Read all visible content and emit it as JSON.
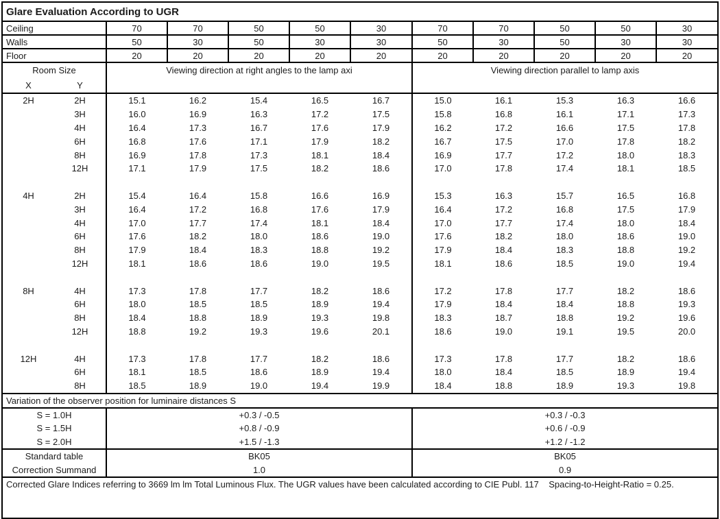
{
  "title": "Glare Evaluation According to UGR",
  "surface_rows": [
    {
      "label": "Ceiling",
      "values": [
        "70",
        "70",
        "50",
        "50",
        "30",
        "70",
        "70",
        "50",
        "50",
        "30"
      ]
    },
    {
      "label": "Walls",
      "values": [
        "50",
        "30",
        "50",
        "30",
        "30",
        "50",
        "30",
        "50",
        "30",
        "30"
      ]
    },
    {
      "label": "Floor",
      "values": [
        "20",
        "20",
        "20",
        "20",
        "20",
        "20",
        "20",
        "20",
        "20",
        "20"
      ]
    }
  ],
  "room_size": {
    "title": "Room Size",
    "x_label": "X",
    "y_label": "Y"
  },
  "viewing_left": "Viewing direction at right angles to the lamp axi",
  "viewing_right": "Viewing direction parallel to lamp axis",
  "blocks": [
    {
      "x": "2H",
      "rows": [
        {
          "y": "2H",
          "left": [
            "15.1",
            "16.2",
            "15.4",
            "16.5",
            "16.7"
          ],
          "right": [
            "15.0",
            "16.1",
            "15.3",
            "16.3",
            "16.6"
          ]
        },
        {
          "y": "3H",
          "left": [
            "16.0",
            "16.9",
            "16.3",
            "17.2",
            "17.5"
          ],
          "right": [
            "15.8",
            "16.8",
            "16.1",
            "17.1",
            "17.3"
          ]
        },
        {
          "y": "4H",
          "left": [
            "16.4",
            "17.3",
            "16.7",
            "17.6",
            "17.9"
          ],
          "right": [
            "16.2",
            "17.2",
            "16.6",
            "17.5",
            "17.8"
          ]
        },
        {
          "y": "6H",
          "left": [
            "16.8",
            "17.6",
            "17.1",
            "17.9",
            "18.2"
          ],
          "right": [
            "16.7",
            "17.5",
            "17.0",
            "17.8",
            "18.2"
          ]
        },
        {
          "y": "8H",
          "left": [
            "16.9",
            "17.8",
            "17.3",
            "18.1",
            "18.4"
          ],
          "right": [
            "16.9",
            "17.7",
            "17.2",
            "18.0",
            "18.3"
          ]
        },
        {
          "y": "12H",
          "left": [
            "17.1",
            "17.9",
            "17.5",
            "18.2",
            "18.6"
          ],
          "right": [
            "17.0",
            "17.8",
            "17.4",
            "18.1",
            "18.5"
          ]
        }
      ]
    },
    {
      "x": "4H",
      "rows": [
        {
          "y": "2H",
          "left": [
            "15.4",
            "16.4",
            "15.8",
            "16.6",
            "16.9"
          ],
          "right": [
            "15.3",
            "16.3",
            "15.7",
            "16.5",
            "16.8"
          ]
        },
        {
          "y": "3H",
          "left": [
            "16.4",
            "17.2",
            "16.8",
            "17.6",
            "17.9"
          ],
          "right": [
            "16.4",
            "17.2",
            "16.8",
            "17.5",
            "17.9"
          ]
        },
        {
          "y": "4H",
          "left": [
            "17.0",
            "17.7",
            "17.4",
            "18.1",
            "18.4"
          ],
          "right": [
            "17.0",
            "17.7",
            "17.4",
            "18.0",
            "18.4"
          ]
        },
        {
          "y": "6H",
          "left": [
            "17.6",
            "18.2",
            "18.0",
            "18.6",
            "19.0"
          ],
          "right": [
            "17.6",
            "18.2",
            "18.0",
            "18.6",
            "19.0"
          ]
        },
        {
          "y": "8H",
          "left": [
            "17.9",
            "18.4",
            "18.3",
            "18.8",
            "19.2"
          ],
          "right": [
            "17.9",
            "18.4",
            "18.3",
            "18.8",
            "19.2"
          ]
        },
        {
          "y": "12H",
          "left": [
            "18.1",
            "18.6",
            "18.6",
            "19.0",
            "19.5"
          ],
          "right": [
            "18.1",
            "18.6",
            "18.5",
            "19.0",
            "19.4"
          ]
        }
      ]
    },
    {
      "x": "8H",
      "rows": [
        {
          "y": "4H",
          "left": [
            "17.3",
            "17.8",
            "17.7",
            "18.2",
            "18.6"
          ],
          "right": [
            "17.2",
            "17.8",
            "17.7",
            "18.2",
            "18.6"
          ]
        },
        {
          "y": "6H",
          "left": [
            "18.0",
            "18.5",
            "18.5",
            "18.9",
            "19.4"
          ],
          "right": [
            "17.9",
            "18.4",
            "18.4",
            "18.8",
            "19.3"
          ]
        },
        {
          "y": "8H",
          "left": [
            "18.4",
            "18.8",
            "18.9",
            "19.3",
            "19.8"
          ],
          "right": [
            "18.3",
            "18.7",
            "18.8",
            "19.2",
            "19.6"
          ]
        },
        {
          "y": "12H",
          "left": [
            "18.8",
            "19.2",
            "19.3",
            "19.6",
            "20.1"
          ],
          "right": [
            "18.6",
            "19.0",
            "19.1",
            "19.5",
            "20.0"
          ]
        }
      ]
    },
    {
      "x": "12H",
      "rows": [
        {
          "y": "4H",
          "left": [
            "17.3",
            "17.8",
            "17.7",
            "18.2",
            "18.6"
          ],
          "right": [
            "17.3",
            "17.8",
            "17.7",
            "18.2",
            "18.6"
          ]
        },
        {
          "y": "6H",
          "left": [
            "18.1",
            "18.5",
            "18.6",
            "18.9",
            "19.4"
          ],
          "right": [
            "18.0",
            "18.4",
            "18.5",
            "18.9",
            "19.4"
          ]
        },
        {
          "y": "8H",
          "left": [
            "18.5",
            "18.9",
            "19.0",
            "19.4",
            "19.9"
          ],
          "right": [
            "18.4",
            "18.8",
            "18.9",
            "19.3",
            "19.8"
          ]
        }
      ]
    }
  ],
  "variation_title": "Variation of the observer position for luminaire distances S",
  "variation_rows": [
    {
      "label": "S = 1.0H",
      "left": "+0.3 / -0.5",
      "right": "+0.3 / -0.3"
    },
    {
      "label": "S = 1.5H",
      "left": "+0.8 / -0.9",
      "right": "+0.6 / -0.9"
    },
    {
      "label": "S = 2.0H",
      "left": "+1.5 / -1.3",
      "right": "+1.2 / -1.2"
    }
  ],
  "summary_rows": [
    {
      "label": "Standard table",
      "left": "BK05",
      "right": "BK05"
    },
    {
      "label": "Correction Summand",
      "left": "1.0",
      "right": "0.9"
    }
  ],
  "footer": "Corrected Glare Indices referring to 3669 lm lm Total Luminous Flux. The UGR values have been calculated according to CIE Publ. 117    Spacing-to-Height-Ratio = 0.25."
}
